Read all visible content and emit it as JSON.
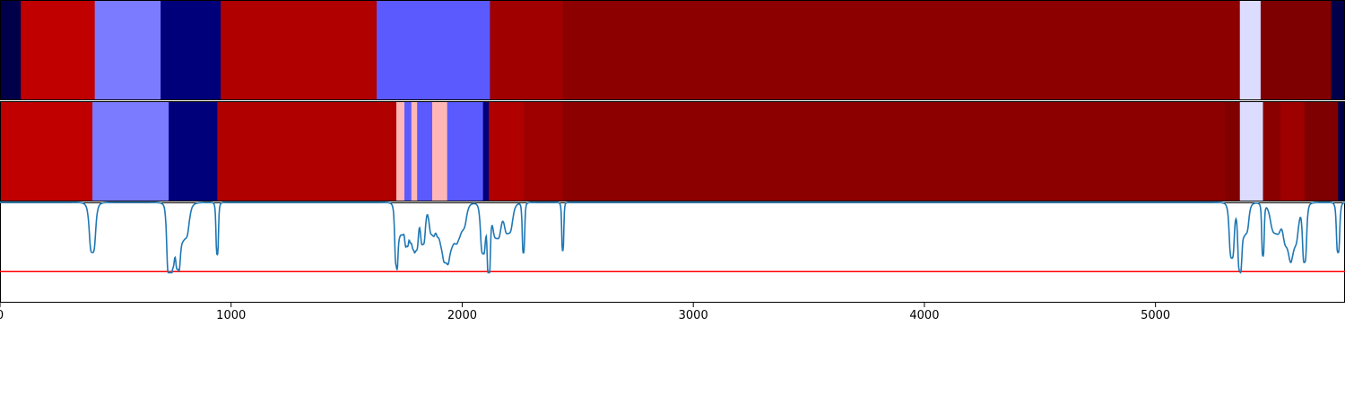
{
  "chart_data": [
    {
      "type": "heatmap",
      "name": "segments-top",
      "title": "",
      "xlim": [
        0,
        5820
      ],
      "segments": [
        {
          "start": 0,
          "end": 90,
          "color": "#00004a"
        },
        {
          "start": 90,
          "end": 410,
          "color": "#c00000"
        },
        {
          "start": 410,
          "end": 695,
          "color": "#7b7bff"
        },
        {
          "start": 695,
          "end": 955,
          "color": "#00007a"
        },
        {
          "start": 955,
          "end": 1630,
          "color": "#b00000"
        },
        {
          "start": 1630,
          "end": 2120,
          "color": "#5a5aff"
        },
        {
          "start": 2120,
          "end": 2435,
          "color": "#a00000"
        },
        {
          "start": 2435,
          "end": 5365,
          "color": "#8c0000"
        },
        {
          "start": 5365,
          "end": 5455,
          "color": "#dcdcff"
        },
        {
          "start": 5455,
          "end": 5760,
          "color": "#7e0000"
        },
        {
          "start": 5760,
          "end": 5820,
          "color": "#00004a"
        }
      ]
    },
    {
      "type": "heatmap",
      "name": "segments-bottom",
      "title": "",
      "xlim": [
        0,
        5820
      ],
      "segments": [
        {
          "start": 0,
          "end": 400,
          "color": "#c00000"
        },
        {
          "start": 400,
          "end": 730,
          "color": "#7b7bff"
        },
        {
          "start": 730,
          "end": 940,
          "color": "#00007a"
        },
        {
          "start": 940,
          "end": 1715,
          "color": "#b00000"
        },
        {
          "start": 1715,
          "end": 1750,
          "color": "#ffb6b6"
        },
        {
          "start": 1750,
          "end": 1780,
          "color": "#5a5aff"
        },
        {
          "start": 1780,
          "end": 1805,
          "color": "#ffb6b6"
        },
        {
          "start": 1805,
          "end": 1870,
          "color": "#5a5aff"
        },
        {
          "start": 1870,
          "end": 1935,
          "color": "#ffb6b6"
        },
        {
          "start": 1935,
          "end": 2090,
          "color": "#5a5aff"
        },
        {
          "start": 2090,
          "end": 2115,
          "color": "#00007a"
        },
        {
          "start": 2115,
          "end": 2265,
          "color": "#b00000"
        },
        {
          "start": 2265,
          "end": 2435,
          "color": "#9e0000"
        },
        {
          "start": 2435,
          "end": 5300,
          "color": "#8c0000"
        },
        {
          "start": 5300,
          "end": 5365,
          "color": "#800000"
        },
        {
          "start": 5365,
          "end": 5465,
          "color": "#dcdcff"
        },
        {
          "start": 5465,
          "end": 5540,
          "color": "#8a0000"
        },
        {
          "start": 5540,
          "end": 5645,
          "color": "#9e0000"
        },
        {
          "start": 5645,
          "end": 5790,
          "color": "#7e0000"
        },
        {
          "start": 5790,
          "end": 5820,
          "color": "#00004a"
        }
      ]
    },
    {
      "type": "line",
      "name": "signal",
      "title": "",
      "xlabel": "",
      "ylabel": "",
      "xlim": [
        0,
        5820
      ],
      "ylim": [
        0,
        1
      ],
      "xticks": [
        0,
        1000,
        2000,
        3000,
        4000,
        5000
      ],
      "line_color": "#1f77b4",
      "threshold": {
        "y": 0.31,
        "color": "#ff0000"
      },
      "dips": [
        {
          "x": 400,
          "width": 15,
          "depth": 0.5
        },
        {
          "x": 730,
          "width": 10,
          "depth": 0.62
        },
        {
          "x": 745,
          "width": 12,
          "depth": 0.55
        },
        {
          "x": 770,
          "width": 12,
          "depth": 0.58
        },
        {
          "x": 800,
          "width": 20,
          "depth": 0.35
        },
        {
          "x": 940,
          "width": 6,
          "depth": 0.52
        },
        {
          "x": 1715,
          "width": 8,
          "depth": 0.57
        },
        {
          "x": 1735,
          "width": 15,
          "depth": 0.3
        },
        {
          "x": 1760,
          "width": 10,
          "depth": 0.38
        },
        {
          "x": 1780,
          "width": 10,
          "depth": 0.33
        },
        {
          "x": 1800,
          "width": 12,
          "depth": 0.45
        },
        {
          "x": 1830,
          "width": 12,
          "depth": 0.4
        },
        {
          "x": 1870,
          "width": 15,
          "depth": 0.3
        },
        {
          "x": 1900,
          "width": 15,
          "depth": 0.28
        },
        {
          "x": 1930,
          "width": 18,
          "depth": 0.55
        },
        {
          "x": 1965,
          "width": 20,
          "depth": 0.35
        },
        {
          "x": 2000,
          "width": 20,
          "depth": 0.25
        },
        {
          "x": 2090,
          "width": 12,
          "depth": 0.5
        },
        {
          "x": 2115,
          "width": 8,
          "depth": 0.68
        },
        {
          "x": 2150,
          "width": 20,
          "depth": 0.35
        },
        {
          "x": 2200,
          "width": 20,
          "depth": 0.3
        },
        {
          "x": 2265,
          "width": 6,
          "depth": 0.5
        },
        {
          "x": 2435,
          "width": 5,
          "depth": 0.48
        },
        {
          "x": 5330,
          "width": 12,
          "depth": 0.55
        },
        {
          "x": 5365,
          "width": 10,
          "depth": 0.65
        },
        {
          "x": 5390,
          "width": 15,
          "depth": 0.3
        },
        {
          "x": 5465,
          "width": 6,
          "depth": 0.52
        },
        {
          "x": 5520,
          "width": 25,
          "depth": 0.3
        },
        {
          "x": 5570,
          "width": 20,
          "depth": 0.38
        },
        {
          "x": 5600,
          "width": 20,
          "depth": 0.4
        },
        {
          "x": 5645,
          "width": 10,
          "depth": 0.58
        },
        {
          "x": 5790,
          "width": 8,
          "depth": 0.5
        }
      ]
    }
  ]
}
